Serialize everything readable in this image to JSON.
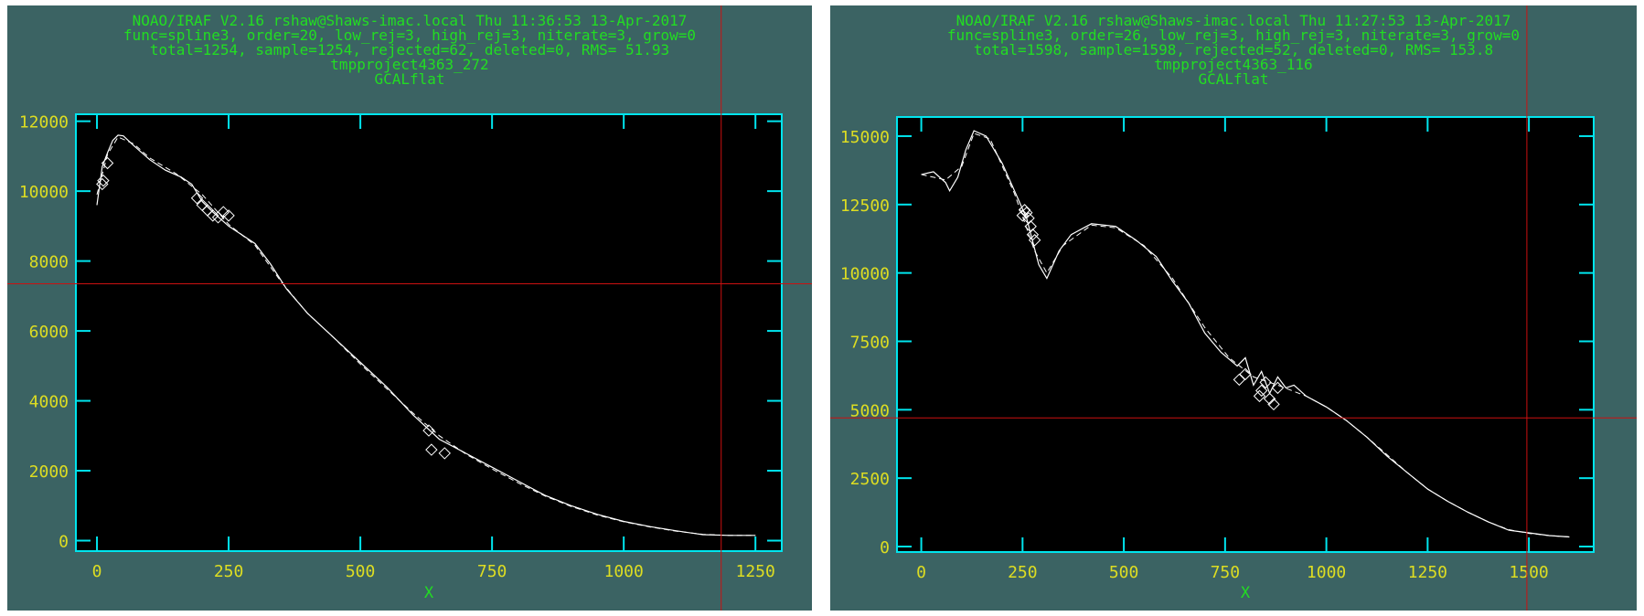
{
  "colors": {
    "background": "#3b6363",
    "plot_background": "#000000",
    "frame": "#00e5ee",
    "header_text": "#22dd22",
    "tick_labels": "#dddd22",
    "data": "#ffffff",
    "crosshair": "#cc1111"
  },
  "chart_data": [
    {
      "type": "line",
      "header": [
        "NOAO/IRAF V2.16 rshaw@Shaws-imac.local Thu 11:36:53 13-Apr-2017",
        "func=spline3, order=20, low_rej=3, high_rej=3, niterate=3, grow=0",
        "total=1254, sample=1254, rejected=62, deleted=0, RMS=  51.93",
        "tmpproject4363_272",
        "GCALflat"
      ],
      "xlabel": "X",
      "ylabel": "",
      "xlim": [
        -40,
        1300
      ],
      "ylim": [
        -300,
        12200
      ],
      "xticks": [
        0,
        250,
        500,
        750,
        1000,
        1250
      ],
      "yticks": [
        0,
        2000,
        4000,
        6000,
        8000,
        10000,
        12000
      ],
      "crosshair": {
        "x": 1185,
        "y": 7350
      },
      "series": [
        {
          "values": [
            [
              0,
              9600
            ],
            [
              10,
              10700
            ],
            [
              20,
              11100
            ],
            [
              30,
              11450
            ],
            [
              40,
              11600
            ],
            [
              50,
              11580
            ],
            [
              70,
              11300
            ],
            [
              100,
              10900
            ],
            [
              130,
              10600
            ],
            [
              160,
              10400
            ],
            [
              180,
              10200
            ],
            [
              200,
              9700
            ],
            [
              220,
              9400
            ],
            [
              250,
              9000
            ],
            [
              270,
              8800
            ],
            [
              300,
              8500
            ],
            [
              330,
              7900
            ],
            [
              360,
              7200
            ],
            [
              400,
              6500
            ],
            [
              450,
              5800
            ],
            [
              500,
              5100
            ],
            [
              550,
              4400
            ],
            [
              600,
              3600
            ],
            [
              650,
              2900
            ],
            [
              700,
              2500
            ],
            [
              750,
              2100
            ],
            [
              800,
              1700
            ],
            [
              850,
              1300
            ],
            [
              900,
              1000
            ],
            [
              950,
              750
            ],
            [
              1000,
              550
            ],
            [
              1050,
              400
            ],
            [
              1100,
              280
            ],
            [
              1150,
              170
            ],
            [
              1200,
              150
            ],
            [
              1250,
              150
            ]
          ]
        },
        {
          "values": [
            [
              0,
              9900
            ],
            [
              20,
              11050
            ],
            [
              40,
              11550
            ],
            [
              70,
              11350
            ],
            [
              100,
              10950
            ],
            [
              150,
              10500
            ],
            [
              200,
              9900
            ],
            [
              250,
              9050
            ],
            [
              300,
              8450
            ],
            [
              350,
              7400
            ],
            [
              400,
              6500
            ],
            [
              450,
              5800
            ],
            [
              500,
              5050
            ],
            [
              550,
              4350
            ],
            [
              600,
              3650
            ],
            [
              650,
              3000
            ],
            [
              700,
              2480
            ],
            [
              750,
              2050
            ],
            [
              800,
              1650
            ],
            [
              850,
              1280
            ],
            [
              900,
              980
            ],
            [
              950,
              730
            ],
            [
              1000,
              540
            ],
            [
              1050,
              390
            ],
            [
              1100,
              270
            ],
            [
              1150,
              180
            ],
            [
              1200,
              150
            ],
            [
              1250,
              150
            ]
          ]
        }
      ],
      "rejected_points": [
        [
          10,
          10200
        ],
        [
          12,
          10300
        ],
        [
          20,
          10800
        ],
        [
          190,
          9800
        ],
        [
          200,
          9600
        ],
        [
          210,
          9450
        ],
        [
          220,
          9300
        ],
        [
          230,
          9250
        ],
        [
          240,
          9400
        ],
        [
          250,
          9300
        ],
        [
          630,
          3150
        ],
        [
          635,
          2600
        ],
        [
          660,
          2500
        ]
      ]
    },
    {
      "type": "line",
      "header": [
        "NOAO/IRAF V2.16 rshaw@Shaws-imac.local Thu 11:27:53 13-Apr-2017",
        "func=spline3, order=26, low_rej=3, high_rej=3, niterate=3, grow=0",
        "total=1598, sample=1598, rejected=52, deleted=0, RMS=  153.8",
        "tmpproject4363_116",
        "GCALflat"
      ],
      "xlabel": "X",
      "ylabel": "",
      "xlim": [
        -60,
        1660
      ],
      "ylim": [
        -200,
        15700
      ],
      "xticks": [
        0,
        250,
        500,
        750,
        1000,
        1250,
        1500
      ],
      "yticks": [
        0,
        2500,
        5000,
        7500,
        10000,
        12500,
        15000
      ],
      "crosshair": {
        "x": 1495,
        "y": 4700
      },
      "series": [
        {
          "values": [
            [
              0,
              13600
            ],
            [
              30,
              13700
            ],
            [
              60,
              13300
            ],
            [
              70,
              13000
            ],
            [
              90,
              13500
            ],
            [
              110,
              14500
            ],
            [
              130,
              15200
            ],
            [
              160,
              15000
            ],
            [
              200,
              14000
            ],
            [
              230,
              13000
            ],
            [
              260,
              12000
            ],
            [
              290,
              10300
            ],
            [
              310,
              9800
            ],
            [
              340,
              10800
            ],
            [
              370,
              11400
            ],
            [
              420,
              11800
            ],
            [
              480,
              11700
            ],
            [
              530,
              11200
            ],
            [
              580,
              10600
            ],
            [
              620,
              9700
            ],
            [
              660,
              8900
            ],
            [
              700,
              7800
            ],
            [
              740,
              7100
            ],
            [
              780,
              6600
            ],
            [
              800,
              6900
            ],
            [
              820,
              5900
            ],
            [
              840,
              6400
            ],
            [
              860,
              5600
            ],
            [
              880,
              6200
            ],
            [
              900,
              5800
            ],
            [
              920,
              5900
            ],
            [
              950,
              5500
            ],
            [
              1000,
              5100
            ],
            [
              1050,
              4600
            ],
            [
              1100,
              4000
            ],
            [
              1150,
              3300
            ],
            [
              1200,
              2700
            ],
            [
              1250,
              2100
            ],
            [
              1300,
              1650
            ],
            [
              1350,
              1250
            ],
            [
              1400,
              900
            ],
            [
              1450,
              600
            ],
            [
              1500,
              500
            ],
            [
              1550,
              400
            ],
            [
              1600,
              350
            ]
          ]
        },
        {
          "values": [
            [
              0,
              13600
            ],
            [
              60,
              13400
            ],
            [
              100,
              13900
            ],
            [
              130,
              15100
            ],
            [
              170,
              14900
            ],
            [
              230,
              12900
            ],
            [
              280,
              10800
            ],
            [
              310,
              10000
            ],
            [
              350,
              11000
            ],
            [
              420,
              11750
            ],
            [
              480,
              11650
            ],
            [
              550,
              11000
            ],
            [
              620,
              9800
            ],
            [
              700,
              8000
            ],
            [
              760,
              6900
            ],
            [
              820,
              6200
            ],
            [
              880,
              5900
            ],
            [
              950,
              5500
            ],
            [
              1000,
              5100
            ],
            [
              1050,
              4600
            ],
            [
              1100,
              4000
            ],
            [
              1150,
              3350
            ],
            [
              1200,
              2700
            ],
            [
              1250,
              2100
            ],
            [
              1300,
              1650
            ],
            [
              1350,
              1250
            ],
            [
              1400,
              900
            ],
            [
              1450,
              620
            ],
            [
              1500,
              480
            ],
            [
              1550,
              400
            ],
            [
              1600,
              350
            ]
          ]
        }
      ],
      "rejected_points": [
        [
          250,
          12100
        ],
        [
          255,
          12300
        ],
        [
          260,
          12200
        ],
        [
          265,
          12000
        ],
        [
          270,
          11700
        ],
        [
          275,
          11400
        ],
        [
          280,
          11200
        ],
        [
          785,
          6100
        ],
        [
          800,
          6300
        ],
        [
          835,
          5500
        ],
        [
          840,
          5700
        ],
        [
          850,
          6000
        ],
        [
          860,
          5400
        ],
        [
          870,
          5200
        ],
        [
          880,
          5800
        ]
      ]
    }
  ]
}
